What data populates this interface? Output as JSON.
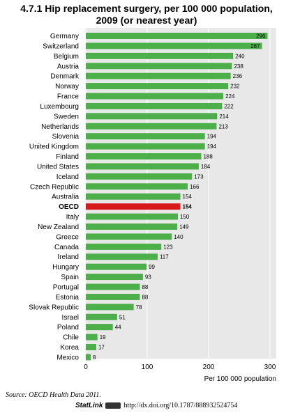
{
  "title_line1": "4.7.1  Hip replacement surgery, per 100 000 population,",
  "title_line2": "2009 (or nearest year)",
  "source": "Source:  OECD Health Data 2011.",
  "statlink": {
    "label": "StatLink",
    "url": "http://dx.doi.org/10.1787/888932524754"
  },
  "colors": {
    "bar": "#4daf4a",
    "highlight": "#d7191c",
    "panel": "#e8e8e8",
    "grid": "#ffffff"
  },
  "chart_data": {
    "type": "bar",
    "orientation": "horizontal",
    "xlabel": "Per 100 000 population",
    "xlim": [
      0,
      300
    ],
    "xticks": [
      0,
      100,
      200,
      300
    ],
    "grid": true,
    "highlight": "OECD",
    "categories": [
      "Germany",
      "Switzerland",
      "Belgium",
      "Austria",
      "Denmark",
      "Norway",
      "France",
      "Luxembourg",
      "Sweden",
      "Netherlands",
      "Slovenia",
      "United Kingdom",
      "Finland",
      "United States",
      "Iceland",
      "Czech Republic",
      "Australia",
      "OECD",
      "Italy",
      "New Zealand",
      "Greece",
      "Canada",
      "Ireland",
      "Hungary",
      "Spain",
      "Portugal",
      "Estonia",
      "Slovak Republic",
      "Israel",
      "Poland",
      "Chile",
      "Korea",
      "Mexico"
    ],
    "values": [
      296,
      287,
      240,
      238,
      236,
      232,
      224,
      222,
      214,
      213,
      194,
      194,
      188,
      184,
      173,
      166,
      154,
      154,
      150,
      149,
      140,
      123,
      117,
      99,
      93,
      88,
      88,
      78,
      51,
      44,
      19,
      17,
      8
    ]
  }
}
